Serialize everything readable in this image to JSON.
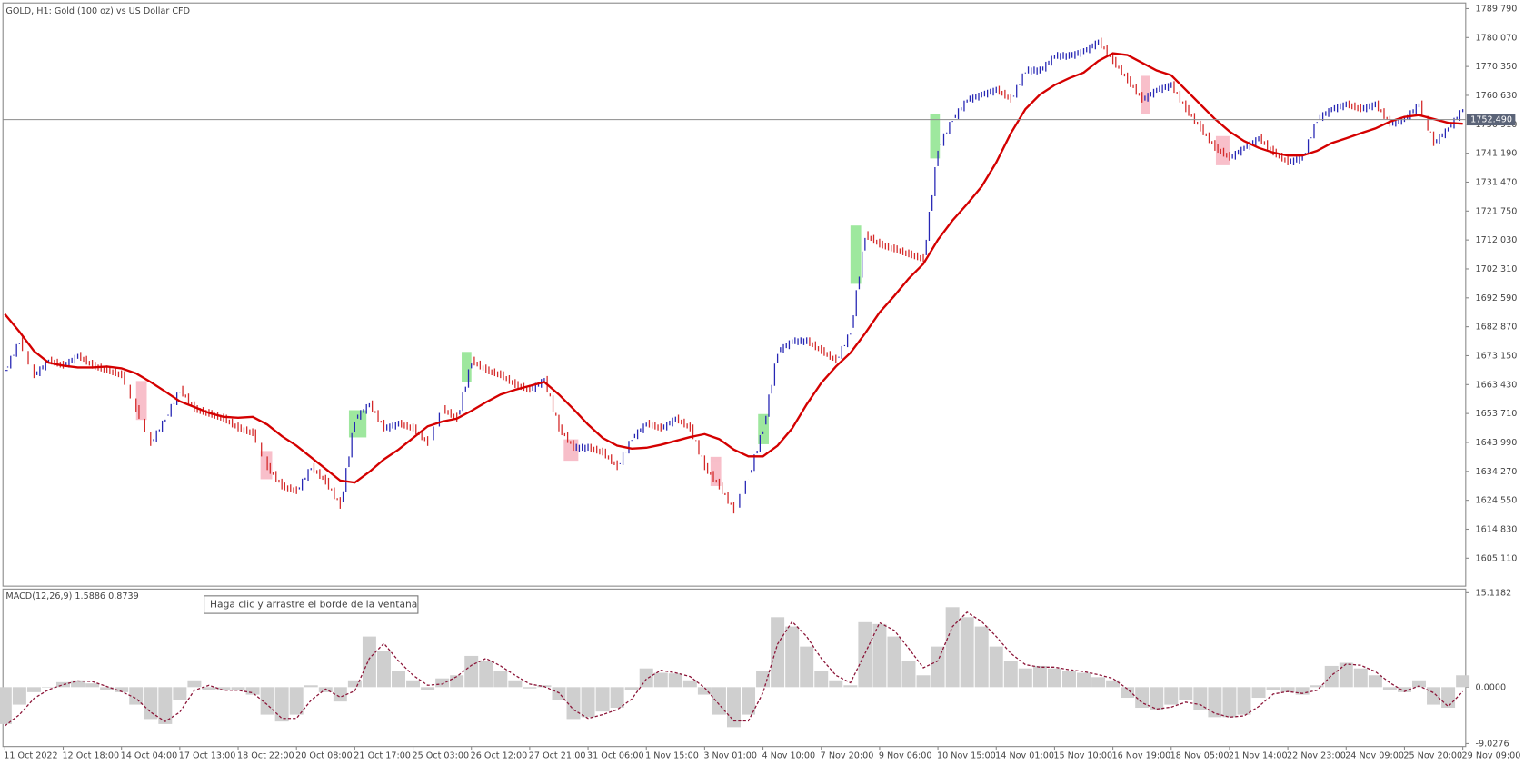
{
  "tooltip": "Haga clic y arrastre el borde de la ventana",
  "chart_data": [
    {
      "type": "line",
      "title": "GOLD, H1:  Gold (100 oz) vs US Dollar CFD",
      "categories": [
        "11 Oct 2022",
        null,
        null,
        null,
        "12 Oct 18:00",
        null,
        null,
        null,
        "14 Oct 04:00",
        null,
        null,
        null,
        "17 Oct 13:00",
        null,
        null,
        null,
        "18 Oct 22:00",
        null,
        null,
        null,
        "20 Oct 08:00",
        null,
        null,
        null,
        "21 Oct 17:00",
        null,
        null,
        null,
        "25 Oct 03:00",
        null,
        null,
        null,
        "26 Oct 12:00",
        null,
        null,
        null,
        "27 Oct 21:00",
        null,
        null,
        null,
        "31 Oct 06:00",
        null,
        null,
        null,
        "1 Nov 15:00",
        null,
        null,
        null,
        "3 Nov 01:00",
        null,
        null,
        null,
        "4 Nov 10:00",
        null,
        null,
        null,
        "7 Nov 20:00",
        null,
        null,
        null,
        "9 Nov 06:00",
        null,
        null,
        null,
        "10 Nov 15:00",
        null,
        null,
        null,
        "14 Nov 01:00",
        null,
        null,
        null,
        "15 Nov 10:00",
        null,
        null,
        null,
        "16 Nov 19:00",
        null,
        null,
        null,
        "18 Nov 05:00",
        null,
        null,
        null,
        "21 Nov 14:00",
        null,
        null,
        null,
        "22 Nov 23:00",
        null,
        null,
        null,
        "24 Nov 09:00",
        null,
        null,
        null,
        "25 Nov 20:00",
        null,
        null,
        null,
        "29 Nov 09:00"
      ],
      "series": [
        {
          "style": "bars",
          "color": "#2626b4",
          "down_color": "#d42a2a",
          "values": [
            1668.2,
            1678.0,
            1666.6,
            1671.5,
            1669.8,
            1673.1,
            1669.8,
            1668.2,
            1666.6,
            1655.2,
            1643.8,
            1652.0,
            1661.7,
            1655.2,
            1653.6,
            1652.0,
            1648.7,
            1647.1,
            1635.7,
            1629.2,
            1627.6,
            1635.7,
            1630.8,
            1622.7,
            1652.0,
            1656.8,
            1648.7,
            1650.3,
            1648.7,
            1643.8,
            1655.2,
            1652.0,
            1671.5,
            1668.2,
            1666.6,
            1663.3,
            1661.7,
            1665.0,
            1648.7,
            1642.2,
            1642.2,
            1640.6,
            1635.7,
            1645.5,
            1650.3,
            1648.7,
            1652.0,
            1648.7,
            1635.7,
            1629.2,
            1621.1,
            1632.5,
            1648.7,
            1674.7,
            1678.0,
            1678.0,
            1674.7,
            1671.5,
            1681.2,
            1713.7,
            1710.5,
            1708.9,
            1707.2,
            1705.6,
            1743.0,
            1752.7,
            1759.2,
            1760.9,
            1762.5,
            1759.2,
            1769.0,
            1769.0,
            1773.9,
            1773.9,
            1775.5,
            1778.7,
            1772.2,
            1765.7,
            1759.2,
            1762.5,
            1764.1,
            1756.0,
            1749.5,
            1743.0,
            1739.7,
            1743.0,
            1746.2,
            1741.4,
            1738.1,
            1739.7,
            1752.7,
            1756.0,
            1757.6,
            1756.0,
            1757.6,
            1751.1,
            1752.7,
            1757.6,
            1744.6,
            1749.5,
            1756.0
          ]
        },
        {
          "style": "line",
          "color": "#d40000",
          "values": [
            1687.1,
            1681.2,
            1674.7,
            1670.8,
            1669.8,
            1669.2,
            1669.2,
            1669.5,
            1668.9,
            1667.2,
            1664.3,
            1661.1,
            1657.8,
            1655.9,
            1653.9,
            1652.6,
            1652.3,
            1652.6,
            1650.0,
            1646.1,
            1642.9,
            1639.0,
            1635.1,
            1631.2,
            1630.5,
            1634.1,
            1638.3,
            1641.6,
            1645.5,
            1649.4,
            1651.0,
            1652.0,
            1654.6,
            1657.5,
            1660.1,
            1661.7,
            1663.0,
            1664.3,
            1660.1,
            1655.2,
            1650.0,
            1645.5,
            1642.9,
            1641.9,
            1642.2,
            1643.2,
            1644.5,
            1645.8,
            1646.8,
            1645.1,
            1641.6,
            1639.3,
            1639.3,
            1642.9,
            1648.7,
            1656.8,
            1664.0,
            1669.5,
            1674.1,
            1680.6,
            1687.7,
            1693.2,
            1699.1,
            1704.0,
            1712.1,
            1718.6,
            1724.1,
            1730.0,
            1738.1,
            1747.9,
            1756.0,
            1760.9,
            1764.1,
            1766.4,
            1768.3,
            1772.2,
            1774.8,
            1774.2,
            1771.6,
            1769.0,
            1767.4,
            1762.5,
            1757.6,
            1752.7,
            1748.5,
            1745.3,
            1743.0,
            1741.4,
            1740.4,
            1740.4,
            1742.0,
            1744.6,
            1746.2,
            1747.9,
            1749.5,
            1751.8,
            1753.4,
            1754.0,
            1752.7,
            1751.4,
            1751.1
          ]
        }
      ],
      "hline": {
        "value": 1752.49,
        "label": "1752.490",
        "color": "#8c8c8c"
      },
      "ylim": [
        1595.7,
        1791.7
      ],
      "yticks": [
        {
          "value": 1789.79,
          "label": "1789.790"
        },
        {
          "value": 1780.07,
          "label": "1780.070"
        },
        {
          "value": 1770.35,
          "label": "1770.350"
        },
        {
          "value": 1760.63,
          "label": "1760.630"
        },
        {
          "value": 1750.91,
          "label": "1750.910"
        },
        {
          "value": 1741.19,
          "label": "1741.190"
        },
        {
          "value": 1731.47,
          "label": "1731.470"
        },
        {
          "value": 1721.75,
          "label": "1721.750"
        },
        {
          "value": 1712.03,
          "label": "1712.030"
        },
        {
          "value": 1702.31,
          "label": "1702.310"
        },
        {
          "value": 1692.59,
          "label": "1692.590"
        },
        {
          "value": 1682.87,
          "label": "1682.870"
        },
        {
          "value": 1673.15,
          "label": "1673.150"
        },
        {
          "value": 1663.43,
          "label": "1663.430"
        },
        {
          "value": 1653.71,
          "label": "1653.710"
        },
        {
          "value": 1643.99,
          "label": "1643.990"
        },
        {
          "value": 1634.27,
          "label": "1634.270"
        },
        {
          "value": 1624.55,
          "label": "1624.550"
        },
        {
          "value": 1614.83,
          "label": "1614.830"
        },
        {
          "value": 1605.11,
          "label": "1605.110"
        }
      ],
      "grid": false
    },
    {
      "type": "bar",
      "title": "MACD(12,26,9) 1.5886 0.8739",
      "color": "#cfcfcf",
      "values": [
        -5.9,
        -2.8,
        -0.8,
        0,
        0.8,
        1.1,
        0.6,
        -0.5,
        -0.8,
        -2.8,
        -5.1,
        -5.9,
        -2.0,
        1.1,
        -0.5,
        -0.5,
        -0.5,
        -1.2,
        -4.4,
        -5.5,
        -4.4,
        0.3,
        -0.8,
        -2.3,
        1.1,
        8.1,
        5.8,
        2.6,
        1.1,
        -0.5,
        1.4,
        1.9,
        5.0,
        4.2,
        2.6,
        1.1,
        -0.2,
        0.3,
        -2.0,
        -5.1,
        -4.8,
        -3.9,
        -3.3,
        -0.5,
        3.0,
        2.3,
        2.2,
        1.1,
        -1.2,
        -4.4,
        -6.4,
        -4.4,
        2.6,
        11.2,
        9.7,
        6.5,
        2.6,
        1.1,
        0.3,
        10.4,
        10.1,
        8.1,
        4.2,
        1.9,
        6.5,
        12.8,
        11.2,
        9.7,
        6.5,
        4.2,
        3.0,
        3.4,
        3.0,
        2.6,
        2.3,
        1.6,
        1.1,
        -1.7,
        -3.3,
        -3.6,
        -2.8,
        -2.0,
        -3.6,
        -4.8,
        -4.8,
        -4.4,
        -1.7,
        -0.5,
        -0.8,
        -1.2,
        0.3,
        3.4,
        3.9,
        3.0,
        1.9,
        -0.5,
        -0.8,
        1.1,
        -2.8,
        -3.3,
        1.9
      ],
      "series": [
        {
          "style": "dashed",
          "color": "#8b1538",
          "values": [
            -6.2,
            -4.4,
            -1.8,
            -0.4,
            0.4,
            1.0,
            0.9,
            0.1,
            -0.7,
            -1.8,
            -4.0,
            -5.5,
            -4.0,
            -0.5,
            0.3,
            -0.5,
            -0.5,
            -0.9,
            -2.8,
            -5.0,
            -5.0,
            -2.1,
            -0.3,
            -1.6,
            -0.6,
            4.6,
            7.0,
            4.2,
            1.9,
            0.3,
            0.5,
            1.7,
            3.5,
            4.6,
            3.4,
            1.9,
            0.5,
            0.1,
            -0.9,
            -3.6,
            -5.0,
            -4.4,
            -3.6,
            -1.9,
            1.3,
            2.7,
            2.3,
            1.7,
            -0.1,
            -2.8,
            -5.4,
            -5.4,
            -0.9,
            6.9,
            10.5,
            8.1,
            4.6,
            1.9,
            0.7,
            5.4,
            10.3,
            9.1,
            6.2,
            3.1,
            4.2,
            9.7,
            12.0,
            10.5,
            8.1,
            5.4,
            3.6,
            3.2,
            3.2,
            2.8,
            2.5,
            2.0,
            1.4,
            -0.3,
            -2.5,
            -3.5,
            -3.2,
            -2.4,
            -2.8,
            -4.2,
            -4.8,
            -4.6,
            -3.1,
            -1.1,
            -0.7,
            -1.0,
            -0.5,
            1.9,
            3.7,
            3.5,
            2.5,
            0.7,
            -0.7,
            0.2,
            -0.9,
            -3.1,
            -0.7
          ]
        }
      ],
      "ylim": [
        -9.5,
        15.7
      ],
      "yticks": [
        15.1182,
        {
          "value": 0,
          "label": "0.0000"
        },
        -9.0276
      ]
    }
  ]
}
